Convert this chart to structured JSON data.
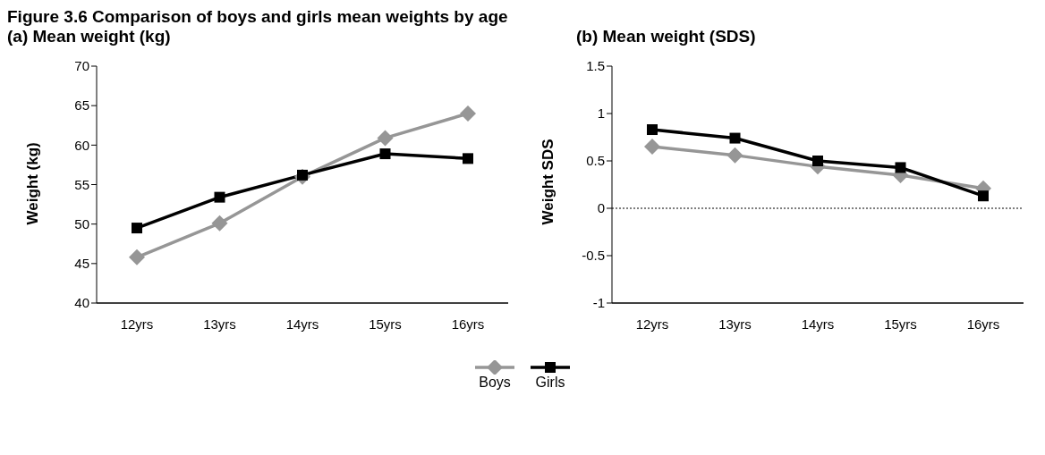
{
  "chart_data": [
    {
      "type": "line",
      "title": "Figure 3.6 Comparison of boys and girls mean weights by age",
      "subtitle": "(a) Mean weight (kg)",
      "ylabel": "Weight (kg)",
      "categories": [
        "12yrs",
        "13yrs",
        "14yrs",
        "15yrs",
        "16yrs"
      ],
      "series": [
        {
          "name": "Boys",
          "color": "#969696",
          "marker": "diamond",
          "values": [
            45.8,
            50.1,
            56.0,
            60.9,
            64.0
          ]
        },
        {
          "name": "Girls",
          "color": "#000000",
          "marker": "square",
          "values": [
            49.5,
            53.4,
            56.2,
            58.9,
            58.3
          ]
        }
      ],
      "ylim": [
        40,
        70
      ],
      "yticks": [
        40,
        45,
        50,
        55,
        60,
        65,
        70
      ],
      "grid": false,
      "legend": "bottom"
    },
    {
      "type": "line",
      "subtitle": "(b) Mean weight (SDS)",
      "ylabel": "Weight SDS",
      "categories": [
        "12yrs",
        "13yrs",
        "14yrs",
        "15yrs",
        "16yrs"
      ],
      "series": [
        {
          "color": "#969696",
          "marker": "diamond",
          "values": [
            0.65,
            0.56,
            0.44,
            0.35,
            0.21
          ]
        },
        {
          "color": "#000000",
          "marker": "square",
          "values": [
            0.83,
            0.74,
            0.5,
            0.43,
            0.13
          ]
        }
      ],
      "ylim": [
        -1,
        1.5
      ],
      "yticks": [
        -1,
        -0.5,
        0,
        0.5,
        1,
        1.5
      ],
      "grid": false,
      "ref_lines": [
        {
          "axis": "y",
          "value": 0,
          "line_style": "dotted",
          "color": "#000000"
        }
      ]
    }
  ]
}
